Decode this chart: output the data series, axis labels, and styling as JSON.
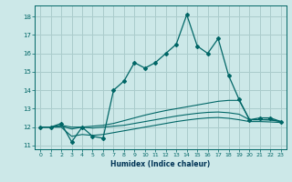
{
  "title": "",
  "xlabel": "Humidex (Indice chaleur)",
  "background_color": "#cce8e8",
  "grid_color": "#aacccc",
  "line_color": "#006666",
  "xlim": [
    -0.5,
    23.5
  ],
  "ylim": [
    10.8,
    18.6
  ],
  "yticks": [
    11,
    12,
    13,
    14,
    15,
    16,
    17,
    18
  ],
  "xticks": [
    0,
    1,
    2,
    3,
    4,
    5,
    6,
    7,
    8,
    9,
    10,
    11,
    12,
    13,
    14,
    15,
    16,
    17,
    18,
    19,
    20,
    21,
    22,
    23
  ],
  "line1_x": [
    0,
    1,
    2,
    3,
    4,
    5,
    6,
    7,
    8,
    9,
    10,
    11,
    12,
    13,
    14,
    15,
    16,
    17,
    18,
    19,
    20,
    21,
    22,
    23
  ],
  "line1_y": [
    12.0,
    12.0,
    12.2,
    11.2,
    12.0,
    11.5,
    11.4,
    14.0,
    14.5,
    15.5,
    15.2,
    15.5,
    16.0,
    16.5,
    18.1,
    16.4,
    16.0,
    16.8,
    14.8,
    13.5,
    12.4,
    12.5,
    12.5,
    12.3
  ],
  "line2_x": [
    0,
    1,
    2,
    3,
    4,
    5,
    6,
    7,
    8,
    9,
    10,
    11,
    12,
    13,
    14,
    15,
    16,
    17,
    18,
    19,
    20,
    21,
    22,
    23
  ],
  "line2_y": [
    12.0,
    12.0,
    12.1,
    12.0,
    12.0,
    12.05,
    12.1,
    12.2,
    12.35,
    12.5,
    12.65,
    12.78,
    12.9,
    13.0,
    13.1,
    13.2,
    13.3,
    13.4,
    13.45,
    13.45,
    12.4,
    12.4,
    12.42,
    12.3
  ],
  "line3_x": [
    0,
    1,
    2,
    3,
    4,
    5,
    6,
    7,
    8,
    9,
    10,
    11,
    12,
    13,
    14,
    15,
    16,
    17,
    18,
    19,
    20,
    21,
    22,
    23
  ],
  "line3_y": [
    12.0,
    12.0,
    12.05,
    11.9,
    12.0,
    11.95,
    12.0,
    12.05,
    12.1,
    12.2,
    12.3,
    12.4,
    12.5,
    12.6,
    12.68,
    12.75,
    12.8,
    12.82,
    12.78,
    12.7,
    12.4,
    12.4,
    12.38,
    12.3
  ],
  "line4_x": [
    0,
    1,
    2,
    3,
    4,
    5,
    6,
    7,
    8,
    9,
    10,
    11,
    12,
    13,
    14,
    15,
    16,
    17,
    18,
    19,
    20,
    21,
    22,
    23
  ],
  "line4_y": [
    12.0,
    12.0,
    12.0,
    11.5,
    11.6,
    11.55,
    11.6,
    11.7,
    11.8,
    11.9,
    12.0,
    12.1,
    12.2,
    12.3,
    12.38,
    12.45,
    12.5,
    12.52,
    12.48,
    12.4,
    12.3,
    12.3,
    12.28,
    12.25
  ]
}
